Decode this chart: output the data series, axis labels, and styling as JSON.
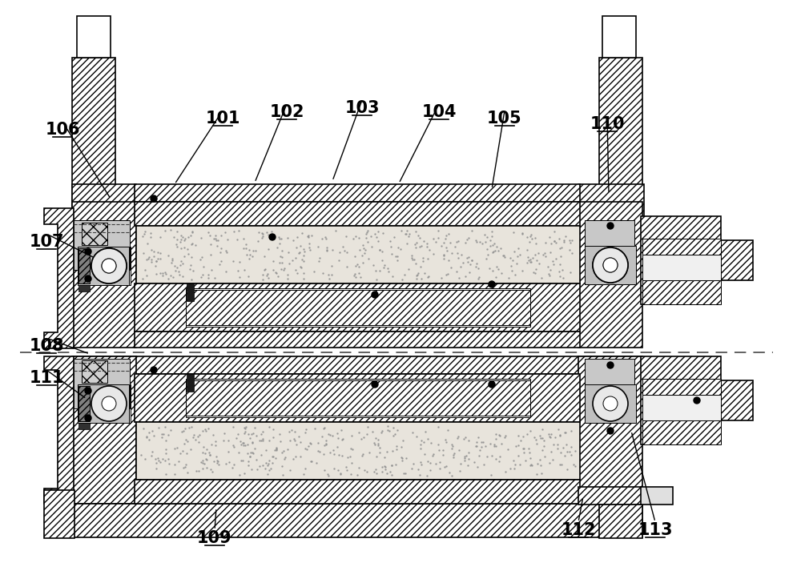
{
  "bg": "#ffffff",
  "lc": "#000000",
  "lw_main": 1.2,
  "lw_thin": 0.7,
  "hfc": "#ffffff",
  "sfc": "#e8e4dc",
  "labels_data": [
    [
      "106",
      78,
      162,
      138,
      248
    ],
    [
      "101",
      278,
      148,
      218,
      230
    ],
    [
      "102",
      358,
      140,
      318,
      228
    ],
    [
      "103",
      452,
      135,
      415,
      226
    ],
    [
      "104",
      548,
      140,
      498,
      229
    ],
    [
      "105",
      630,
      148,
      614,
      236
    ],
    [
      "110",
      758,
      155,
      760,
      242
    ],
    [
      "107",
      58,
      302,
      118,
      322
    ],
    [
      "108",
      58,
      432,
      112,
      442
    ],
    [
      "111",
      58,
      472,
      108,
      498
    ],
    [
      "109",
      268,
      672,
      270,
      634
    ],
    [
      "112",
      722,
      662,
      728,
      620
    ],
    [
      "113",
      818,
      662,
      788,
      538
    ]
  ]
}
